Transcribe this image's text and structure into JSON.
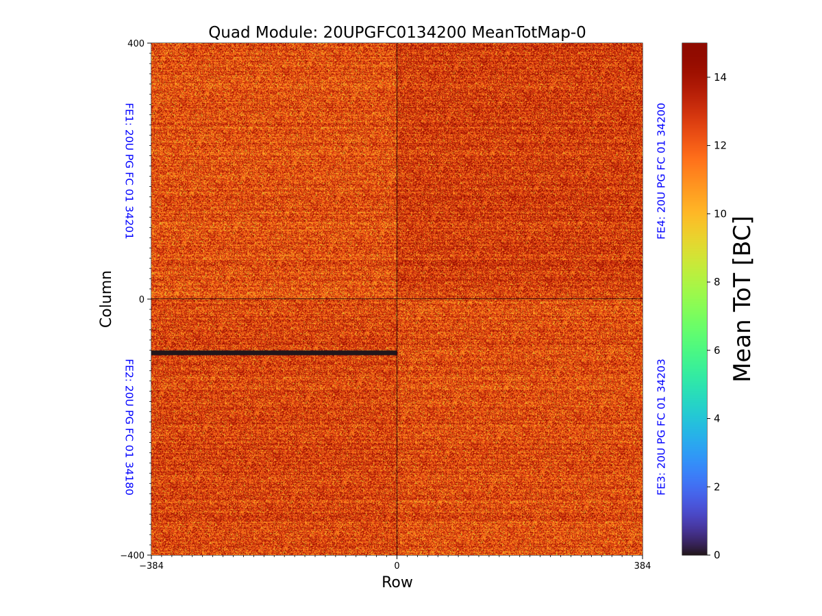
{
  "chart_data": {
    "type": "heatmap",
    "title": "Quad Module: 20UPGFC0134200 MeanTotMap-0",
    "xlabel": "Row",
    "ylabel": "Column",
    "xlim": [
      -384,
      384
    ],
    "ylim": [
      -400,
      400
    ],
    "xticks": [
      {
        "value": -384,
        "label": "−384"
      },
      {
        "value": 0,
        "label": "0"
      },
      {
        "value": 384,
        "label": "384"
      }
    ],
    "yticks": [
      {
        "value": 400,
        "label": "400"
      },
      {
        "value": 0,
        "label": "0"
      },
      {
        "value": -400,
        "label": "−400"
      }
    ],
    "colorbar": {
      "label": "Mean ToT [BC]",
      "colormap": "turbo",
      "range": [
        0,
        15
      ],
      "ticks": [
        {
          "value": 0,
          "label": "0"
        },
        {
          "value": 2,
          "label": "2"
        },
        {
          "value": 4,
          "label": "4"
        },
        {
          "value": 6,
          "label": "6"
        },
        {
          "value": 8,
          "label": "8"
        },
        {
          "value": 10,
          "label": "10"
        },
        {
          "value": 12,
          "label": "12"
        },
        {
          "value": 14,
          "label": "14"
        }
      ]
    },
    "quadrants": [
      {
        "name": "FE1",
        "label": "FE1: 20U PG FC 01 34201",
        "x_range": [
          -384,
          0
        ],
        "y_range": [
          0,
          400
        ],
        "typical_mean_tot": 12.5,
        "side": "left"
      },
      {
        "name": "FE4",
        "label": "FE4: 20U PG FC 01 34200",
        "x_range": [
          0,
          384
        ],
        "y_range": [
          0,
          400
        ],
        "typical_mean_tot": 13.0,
        "side": "right"
      },
      {
        "name": "FE2",
        "label": "FE2: 20U PG FC 01 34180",
        "x_range": [
          -384,
          0
        ],
        "y_range": [
          -400,
          0
        ],
        "typical_mean_tot": 12.8,
        "side": "left"
      },
      {
        "name": "FE3",
        "label": "FE3: 20U PG FC 01 34203",
        "x_range": [
          0,
          384
        ],
        "y_range": [
          -400,
          0
        ],
        "typical_mean_tot": 12.6,
        "side": "right"
      }
    ],
    "dead_region": {
      "x_range": [
        -384,
        0
      ],
      "y_range": [
        -88,
        -80
      ],
      "mean_tot": 0
    },
    "label_color": "#0000ff"
  }
}
